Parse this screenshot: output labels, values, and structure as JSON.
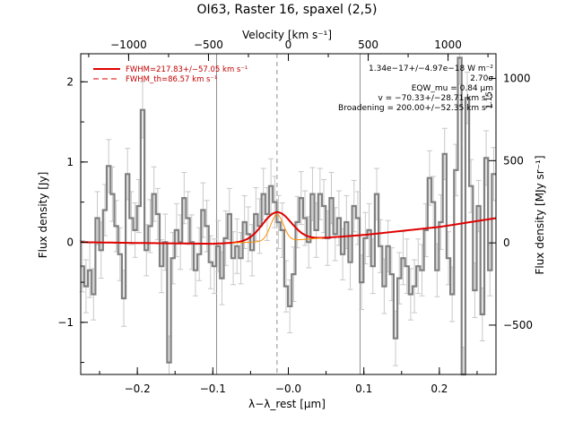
{
  "chart_data": {
    "type": "line",
    "title": "OI63, Raster 16, spaxel (2,5)",
    "xlabel": "λ−λ_rest [μm]",
    "x2label": "Velocity [km s⁻¹]",
    "ylabel": "Flux density [Jy]",
    "y2label": "Flux density [MJy sr⁻¹]",
    "xlim": [
      -0.275,
      0.275
    ],
    "ylim": [
      -1.65,
      2.35
    ],
    "x2lim": [
      -1300,
      1300
    ],
    "y2lim": [
      -800,
      1150
    ],
    "xticks": [
      -0.2,
      -0.1,
      0.0,
      0.1,
      0.2
    ],
    "xtick_labels": [
      "−0.2",
      "−0.1",
      "−0.0",
      "0.1",
      "0.2"
    ],
    "yticks": [
      -1,
      0,
      1,
      2
    ],
    "ytick_labels": [
      "−1",
      "0",
      "1",
      "2"
    ],
    "x2ticks": [
      -1000,
      -500,
      0,
      500,
      1000
    ],
    "x2tick_labels": [
      "−1000",
      "−500",
      "0",
      "500",
      "1000"
    ],
    "y2ticks": [
      -500,
      0,
      500,
      1000
    ],
    "y2tick_labels": [
      "−500",
      "0",
      "500",
      "1000"
    ],
    "vlines": [
      -0.095,
      0.095
    ],
    "center_line": -0.015,
    "legend": [
      {
        "label": "FWHM=217.83+/−57.05 km s⁻¹",
        "style": "solid",
        "color": "#e00000"
      },
      {
        "label": "FWHM_th=86.57 km s⁻¹",
        "style": "dashed",
        "color": "#e00000"
      }
    ],
    "annotations": [
      "1.34e−17+/−4.97e−18 W m⁻²",
      "2.70σ",
      "EQW_mu = 0.84 μm",
      "v = −70.33+/−28.71 km s⁻¹",
      "Broadening = 200.00+/−52.35 km s⁻¹"
    ],
    "side_annotation": "1.15",
    "series": [
      {
        "type": "step",
        "color": "#808080",
        "x": [
          -0.273,
          -0.268,
          -0.263,
          -0.258,
          -0.253,
          -0.248,
          -0.243,
          -0.238,
          -0.233,
          -0.228,
          -0.223,
          -0.218,
          -0.213,
          -0.208,
          -0.203,
          -0.198,
          -0.193,
          -0.188,
          -0.183,
          -0.178,
          -0.173,
          -0.168,
          -0.163,
          -0.158,
          -0.153,
          -0.148,
          -0.143,
          -0.138,
          -0.133,
          -0.128,
          -0.123,
          -0.118,
          -0.113,
          -0.108,
          -0.103,
          -0.098,
          -0.093,
          -0.088,
          -0.083,
          -0.078,
          -0.073,
          -0.068,
          -0.063,
          -0.058,
          -0.053,
          -0.048,
          -0.043,
          -0.038,
          -0.033,
          -0.028,
          -0.023,
          -0.018,
          -0.013,
          -0.008,
          -0.003,
          0.002,
          0.007,
          0.012,
          0.017,
          0.022,
          0.027,
          0.032,
          0.037,
          0.042,
          0.047,
          0.052,
          0.057,
          0.062,
          0.067,
          0.072,
          0.077,
          0.082,
          0.087,
          0.092,
          0.097,
          0.102,
          0.107,
          0.112,
          0.117,
          0.122,
          0.127,
          0.132,
          0.137,
          0.142,
          0.147,
          0.152,
          0.157,
          0.162,
          0.167,
          0.172,
          0.177,
          0.182,
          0.187,
          0.192,
          0.197,
          0.202,
          0.207,
          0.212,
          0.217,
          0.222,
          0.227,
          0.232,
          0.237,
          0.242,
          0.247,
          0.252,
          0.257,
          0.262,
          0.267,
          0.272
        ],
        "values": [
          -0.3,
          -0.55,
          -0.35,
          -0.65,
          0.3,
          -0.1,
          0.4,
          0.95,
          0.6,
          0.2,
          -0.15,
          -0.7,
          0.85,
          0.3,
          0.15,
          0.45,
          1.65,
          -0.1,
          0.2,
          0.6,
          0.35,
          -0.3,
          0.0,
          -1.5,
          -0.2,
          0.15,
          0.0,
          0.55,
          0.3,
          0.0,
          -0.35,
          -0.15,
          0.4,
          0.2,
          -0.25,
          -0.3,
          -0.05,
          -0.45,
          0.05,
          0.35,
          -0.2,
          -0.05,
          -0.2,
          0.25,
          0.1,
          -0.1,
          0.35,
          0.2,
          0.6,
          0.35,
          0.7,
          0.5,
          0.25,
          0.15,
          -0.55,
          -0.8,
          -0.4,
          0.25,
          0.55,
          0.3,
          0.0,
          0.6,
          0.15,
          0.6,
          0.45,
          0.05,
          0.55,
          0.1,
          0.3,
          -0.15,
          0.25,
          -0.25,
          0.45,
          0.3,
          -0.5,
          0.05,
          0.15,
          -0.3,
          0.6,
          -0.05,
          -0.55,
          -0.05,
          -0.4,
          -1.2,
          -0.45,
          -0.2,
          -0.3,
          -0.65,
          -0.55,
          -0.3,
          -0.35,
          0.15,
          0.8,
          0.5,
          -0.35,
          0.25,
          1.1,
          -0.2,
          -0.65,
          0.9,
          2.3,
          -1.65,
          1.8,
          0.7,
          -0.6,
          0.45,
          -0.9,
          1.05,
          -0.35,
          0.85
        ],
        "errors": [
          0.32,
          0.33,
          0.34,
          0.32,
          0.33,
          0.35,
          0.32,
          0.33,
          0.34,
          0.32,
          0.33,
          0.35,
          0.32,
          0.33,
          0.34,
          0.33,
          0.35,
          0.32,
          0.33,
          0.34,
          0.32,
          0.33,
          0.35,
          0.33,
          0.32,
          0.33,
          0.34,
          0.32,
          0.33,
          0.34,
          0.32,
          0.33,
          0.34,
          0.32,
          0.33,
          0.34,
          0.32,
          0.33,
          0.34,
          0.32,
          0.33,
          0.34,
          0.32,
          0.33,
          0.34,
          0.32,
          0.33,
          0.34,
          0.32,
          0.33,
          0.34,
          0.32,
          0.33,
          0.34,
          0.32,
          0.33,
          0.34,
          0.32,
          0.33,
          0.34,
          0.32,
          0.33,
          0.34,
          0.32,
          0.33,
          0.34,
          0.32,
          0.33,
          0.34,
          0.32,
          0.33,
          0.34,
          0.32,
          0.33,
          0.34,
          0.32,
          0.33,
          0.34,
          0.32,
          0.33,
          0.34,
          0.32,
          0.33,
          0.34,
          0.32,
          0.33,
          0.34,
          0.32,
          0.33,
          0.34,
          0.32,
          0.33,
          0.34,
          0.32,
          0.33,
          0.34,
          0.32,
          0.33,
          0.34,
          0.32,
          0.33,
          0.34,
          0.32,
          0.33,
          0.34,
          0.32,
          0.33,
          0.34,
          0.32,
          0.33
        ]
      },
      {
        "type": "fit",
        "color": "#e00000",
        "model": "gaussian+baseline",
        "center": -0.015,
        "amplitude": 0.36,
        "sigma": 0.019,
        "baseline": [
          [
            -0.275,
            0.0
          ],
          [
            -0.2,
            -0.01
          ],
          [
            -0.1,
            -0.02
          ],
          [
            0.0,
            0.02
          ],
          [
            0.1,
            0.09
          ],
          [
            0.2,
            0.19
          ],
          [
            0.275,
            0.3
          ]
        ]
      },
      {
        "type": "thermal",
        "color": "#ff8c00",
        "center": -0.015,
        "amplitude": 0.33,
        "sigma": 0.0085
      }
    ]
  }
}
